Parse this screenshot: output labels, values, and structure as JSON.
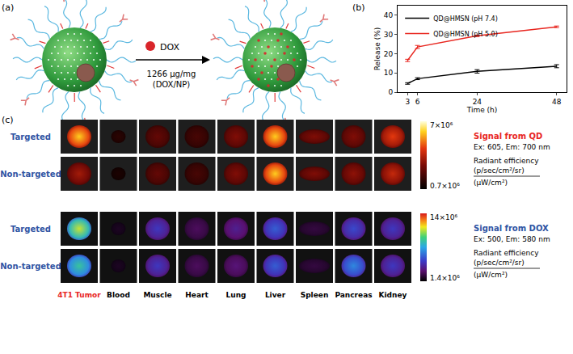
{
  "panels": [
    "(a)",
    "(b)",
    "(c)"
  ],
  "schematic": {
    "drug": "DOX",
    "loading": "1266 μg/mg",
    "loading_basis": "(DOX/NP)"
  },
  "chart_data": {
    "type": "line",
    "x": [
      3,
      6,
      24,
      48
    ],
    "series": [
      {
        "name": "QD@HMSN (pH 7.4)",
        "color": "#000000",
        "values": [
          4.5,
          7.0,
          10.8,
          13.5
        ],
        "error": [
          0.4,
          0.5,
          0.9,
          0.8
        ]
      },
      {
        "name": "QD@HMSN (pH 5.0)",
        "color": "#e8261f",
        "values": [
          16.5,
          23.5,
          29.3,
          34.0
        ],
        "error": [
          0.6,
          0.8,
          0.4,
          0.4
        ]
      }
    ],
    "xlabel": "Time (h)",
    "ylabel": "Release (%)",
    "xlim": [
      0,
      51
    ],
    "ylim": [
      0,
      45
    ],
    "xticks": [
      3,
      6,
      24,
      48
    ],
    "yticks": [
      0,
      10,
      20,
      30,
      40
    ],
    "grid": false,
    "legend": "upper left"
  },
  "imaging": {
    "organs": [
      "4T1 Tumor",
      "Blood",
      "Muscle",
      "Heart",
      "Lung",
      "Liver",
      "Spleen",
      "Pancreas",
      "Kidney"
    ],
    "groups": [
      "Targeted",
      "Non-targeted"
    ],
    "signals": [
      {
        "name": "Signal from QD",
        "wavelengths": "Ex: 605, Em: 700 nm",
        "unit": [
          "Radiant efficiency",
          "(p/sec/cm²/sr)",
          "(μW/cm²)"
        ],
        "colorbar": {
          "range": [
            700000,
            7000000
          ],
          "ticks": [
            {
              "value": 7000000,
              "label": "7×10⁶"
            },
            {
              "value": 700000,
              "label": "0.7×10⁶"
            }
          ]
        },
        "intensity": [
          [
            6000000,
            1500000,
            2500000,
            2000000,
            3000000,
            6000000,
            3000000,
            3000000,
            4500000
          ],
          [
            3500000,
            1200000,
            2500000,
            2000000,
            3000000,
            6000000,
            3000000,
            3200000,
            4000000
          ]
        ]
      },
      {
        "name": "Signal from DOX",
        "wavelengths": "Ex: 500, Em: 580 nm",
        "unit": [
          "Radiant efficiency",
          "(p/sec/cm²/sr)",
          "(μW/cm²)"
        ],
        "colorbar": {
          "range": [
            1400000,
            14000000
          ],
          "ticks": [
            {
              "value": 14000000,
              "label": "14×10⁶"
            },
            {
              "value": 1400000,
              "label": "1.4×10⁶"
            }
          ]
        },
        "intensity": [
          [
            11000000,
            2000000,
            5000000,
            3000000,
            4000000,
            6000000,
            2500000,
            5500000,
            5000000
          ],
          [
            9000000,
            2000000,
            5000000,
            3000000,
            3500000,
            6000000,
            2500000,
            7000000,
            5000000
          ]
        ]
      }
    ]
  }
}
